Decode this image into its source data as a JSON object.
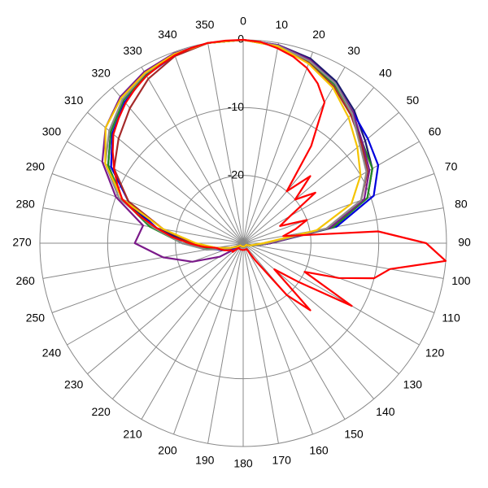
{
  "chart_data": {
    "type": "polar",
    "rlim": [
      -30,
      0
    ],
    "rticks": [
      -20,
      -10,
      0
    ],
    "thetaticks": [
      0,
      10,
      20,
      30,
      40,
      50,
      60,
      70,
      80,
      90,
      100,
      110,
      120,
      130,
      140,
      150,
      160,
      170,
      180,
      190,
      200,
      210,
      220,
      230,
      240,
      250,
      260,
      270,
      280,
      290,
      300,
      310,
      320,
      330,
      340,
      350
    ],
    "theta": [
      0,
      10,
      20,
      30,
      40,
      50,
      60,
      70,
      80,
      90,
      100,
      110,
      120,
      130,
      140,
      150,
      160,
      170,
      180,
      190,
      200,
      210,
      220,
      230,
      240,
      250,
      260,
      270,
      280,
      290,
      300,
      310,
      320,
      330,
      340,
      350
    ],
    "series": [
      {
        "color": "#1a1a6e",
        "values": [
          0,
          -0.3,
          -1,
          -2.5,
          -4.5,
          -6.5,
          -8,
          -10.5,
          -16.5,
          -26,
          -28,
          -29,
          -29.5,
          -29.5,
          -29.5,
          -29.5,
          -29.5,
          -29.5,
          -29.5,
          -29.5,
          -29.5,
          -29.5,
          -29.5,
          -29.5,
          -29,
          -28,
          -26,
          -22,
          -17,
          -11,
          -7,
          -4.5,
          -2.5,
          -1.2,
          -0.4,
          0
        ]
      },
      {
        "color": "#0000dd",
        "values": [
          0,
          -0.4,
          -1.5,
          -3,
          -4.8,
          -6,
          -7,
          -9.5,
          -16,
          -26,
          -28,
          -29,
          -29.5,
          -29.5,
          -29.5,
          -29.5,
          -29.5,
          -29.5,
          -29.5,
          -29.5,
          -29.5,
          -29.5,
          -29.5,
          -29.5,
          -28.5,
          -27,
          -25,
          -21,
          -17,
          -12,
          -7.5,
          -4.8,
          -2.8,
          -1.4,
          -0.5,
          0
        ]
      },
      {
        "color": "#228b22",
        "values": [
          0,
          -0.4,
          -1.5,
          -3,
          -5,
          -7,
          -8,
          -10.5,
          -16.5,
          -26,
          -28,
          -29,
          -29.5,
          -29.5,
          -29.5,
          -29.5,
          -29.5,
          -29.5,
          -29.5,
          -29.5,
          -29.5,
          -29.5,
          -29.5,
          -29.5,
          -29,
          -27.5,
          -25,
          -21,
          -16,
          -11,
          -7,
          -4.5,
          -2.5,
          -1.2,
          -0.4,
          0
        ]
      },
      {
        "color": "#7b1a8a",
        "values": [
          0,
          -0.3,
          -1.2,
          -2.8,
          -4.8,
          -7,
          -8.5,
          -11,
          -17,
          -26,
          -28,
          -29,
          -29.5,
          -29.5,
          -29.5,
          -29.5,
          -29.5,
          -29.5,
          -29.5,
          -29.5,
          -29.5,
          -29.5,
          -29.5,
          -29,
          -26,
          -22,
          -18,
          -14,
          -15,
          -10,
          -6,
          -3.5,
          -1.8,
          -0.8,
          -0.2,
          0
        ]
      },
      {
        "color": "#a52a2a",
        "values": [
          0,
          -0.5,
          -1.7,
          -3.3,
          -5.3,
          -7.2,
          -8.8,
          -11.5,
          -17.5,
          -26.5,
          -28,
          -29,
          -29.5,
          -29.5,
          -29.5,
          -29.5,
          -29.5,
          -29.5,
          -29.5,
          -29.5,
          -29.5,
          -29.5,
          -29.5,
          -29.5,
          -29,
          -28,
          -26,
          -22.5,
          -18,
          -12,
          -8,
          -6,
          -4,
          -2,
          -0.6,
          0
        ]
      },
      {
        "color": "#8c8c8c",
        "values": [
          0,
          -0.4,
          -1.4,
          -2.8,
          -5,
          -7.5,
          -9,
          -11.5,
          -17.5,
          -26.5,
          -28,
          -29,
          -29.5,
          -29.5,
          -29.5,
          -29.5,
          -29.5,
          -29.5,
          -29.5,
          -29.5,
          -29.5,
          -29.5,
          -29.5,
          -29.5,
          -29,
          -27.5,
          -24.5,
          -21,
          -16.5,
          -10.5,
          -6.5,
          -4.2,
          -2.3,
          -1.1,
          -0.3,
          0
        ]
      },
      {
        "color": "#f5c400",
        "values": [
          0,
          -0.5,
          -1.8,
          -3.5,
          -5.8,
          -8,
          -10,
          -13,
          -19,
          -27,
          -28.5,
          -29,
          -29.5,
          -29.5,
          -29.5,
          -29.5,
          -29.5,
          -29.5,
          -29.5,
          -29.5,
          -29.5,
          -29.5,
          -29.5,
          -29.5,
          -29,
          -28,
          -26,
          -23,
          -18,
          -11,
          -6.5,
          -3.5,
          -2,
          -1,
          -0.3,
          0
        ]
      },
      {
        "color": "#ff0000",
        "theta": [
          0,
          5,
          10,
          15,
          20,
          25,
          30,
          35,
          40,
          45,
          50,
          55,
          60,
          65,
          70,
          75,
          80,
          85,
          90,
          95,
          100,
          105,
          110,
          115,
          120,
          125,
          130,
          135,
          140,
          145,
          150,
          155,
          160,
          165,
          170,
          175,
          180,
          185,
          190,
          195,
          200,
          205,
          210,
          215,
          220,
          225,
          230,
          235,
          240,
          245,
          250,
          255,
          260,
          265,
          270,
          275,
          280,
          285,
          290,
          295,
          300,
          305,
          310,
          315,
          320,
          325,
          330,
          335,
          340,
          345,
          350,
          355
        ],
        "values": [
          0,
          -0.2,
          -0.8,
          -1.5,
          -2.5,
          -4,
          -6,
          -12.5,
          -20,
          -16,
          -20,
          -17,
          -22,
          -24,
          -20,
          -22,
          -24,
          -10,
          -3,
          0,
          -8,
          -10,
          -15,
          -20,
          -11.5,
          -20,
          -24,
          -16,
          -20,
          -27,
          -29,
          -29,
          -29,
          -29,
          -29,
          -29,
          -29,
          -29,
          -29,
          -29,
          -29,
          -29,
          -29,
          -29,
          -29,
          -29,
          -28,
          -28,
          -28,
          -27.5,
          -27,
          -26.5,
          -26,
          -24,
          -22,
          -19.5,
          -17,
          -14,
          -11,
          -9.5,
          -8,
          -6.5,
          -5,
          -4,
          -3,
          -2.2,
          -1.5,
          -1,
          -0.5,
          -0.2,
          0,
          0
        ]
      }
    ]
  }
}
